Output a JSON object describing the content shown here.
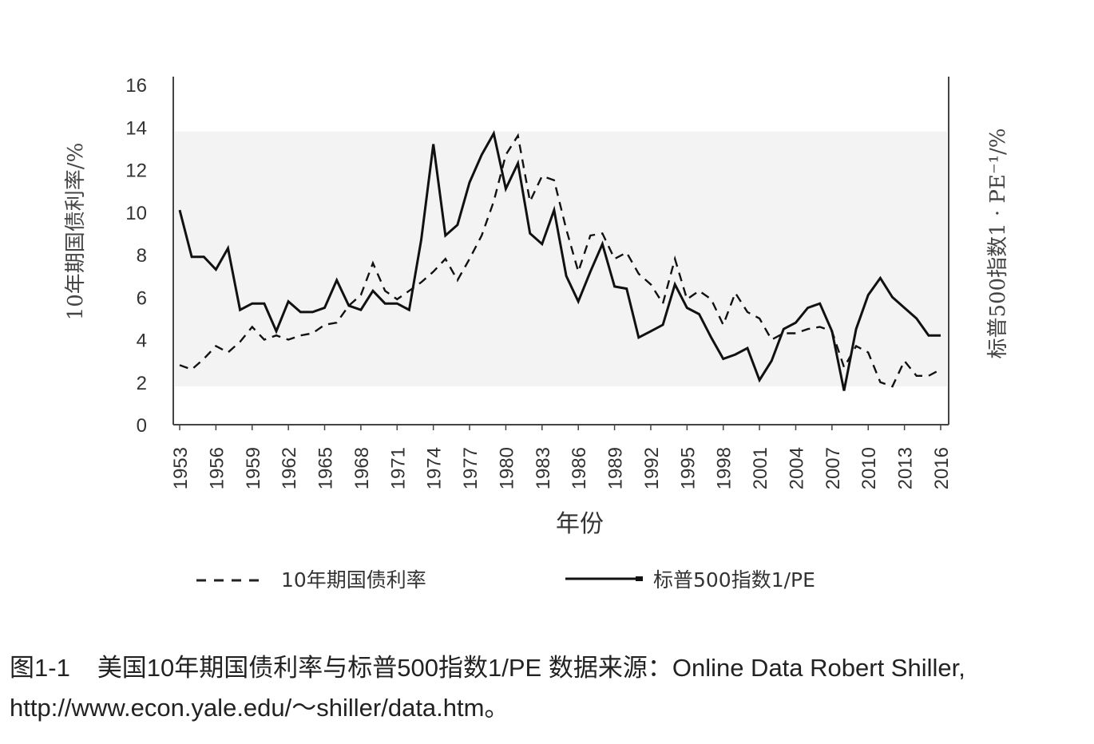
{
  "caption": {
    "label": "图1-1",
    "text": "美国10年期国债利率与标普500指数1/PE 数据来源：Online Data Robert Shiller, http://www.econ.yale.edu/～shiller/data.htm。"
  },
  "chart_data": {
    "type": "line",
    "xlabel": "年份",
    "ylabel": "10年期国债利率/%",
    "y2label": "标普500指数1 · PE⁻¹/%",
    "ylim": [
      0,
      16
    ],
    "yticks": [
      0,
      2,
      4,
      6,
      8,
      10,
      12,
      14,
      16
    ],
    "xlim": [
      1953,
      2016
    ],
    "xticks": [
      "1953",
      "1956",
      "1959",
      "1962",
      "1965",
      "1968",
      "1971",
      "1974",
      "1977",
      "1980",
      "1983",
      "1986",
      "1989",
      "1992",
      "1995",
      "1998",
      "2001",
      "2004",
      "2007",
      "2010",
      "2013",
      "2016"
    ],
    "legend_position": "bottom",
    "colors": {
      "line": "#111111",
      "band": "#f3f3f3"
    },
    "x": [
      1953,
      1954,
      1955,
      1956,
      1957,
      1958,
      1959,
      1960,
      1961,
      1962,
      1963,
      1964,
      1965,
      1966,
      1967,
      1968,
      1969,
      1970,
      1971,
      1972,
      1973,
      1974,
      1975,
      1976,
      1977,
      1978,
      1979,
      1980,
      1981,
      1982,
      1983,
      1984,
      1985,
      1986,
      1987,
      1988,
      1989,
      1990,
      1991,
      1992,
      1993,
      1994,
      1995,
      1996,
      1997,
      1998,
      1999,
      2000,
      2001,
      2002,
      2003,
      2004,
      2005,
      2006,
      2007,
      2008,
      2009,
      2010,
      2011,
      2012,
      2013,
      2014,
      2015,
      2016
    ],
    "series": [
      {
        "name": "10年期国债利率",
        "style": "dashed",
        "values": [
          2.8,
          2.6,
          3.1,
          3.7,
          3.4,
          3.9,
          4.6,
          4.0,
          4.2,
          4.0,
          4.2,
          4.3,
          4.7,
          4.8,
          5.6,
          6.1,
          7.6,
          6.3,
          5.9,
          6.3,
          6.7,
          7.2,
          7.8,
          6.8,
          7.8,
          8.9,
          10.5,
          12.7,
          13.6,
          10.5,
          11.7,
          11.5,
          9.2,
          7.2,
          8.9,
          9.0,
          7.8,
          8.1,
          7.1,
          6.6,
          5.7,
          7.8,
          5.9,
          6.3,
          5.9,
          4.7,
          6.2,
          5.3,
          5.0,
          4.0,
          4.3,
          4.3,
          4.5,
          4.6,
          4.4,
          2.7,
          3.7,
          3.4,
          2.0,
          1.8,
          3.0,
          2.3,
          2.3,
          2.6
        ]
      },
      {
        "name": "标普500指数1/PE",
        "style": "solid",
        "values": [
          10.1,
          7.9,
          7.9,
          7.3,
          8.3,
          5.4,
          5.7,
          5.7,
          4.4,
          5.8,
          5.3,
          5.3,
          5.5,
          6.8,
          5.6,
          5.4,
          6.3,
          5.7,
          5.7,
          5.4,
          8.7,
          13.2,
          8.9,
          9.4,
          11.4,
          12.7,
          13.7,
          11.1,
          12.3,
          9.0,
          8.5,
          10.1,
          7.0,
          5.8,
          7.2,
          8.5,
          6.5,
          6.4,
          4.1,
          4.4,
          4.7,
          6.6,
          5.5,
          5.2,
          4.1,
          3.1,
          3.3,
          3.6,
          2.1,
          3.0,
          4.5,
          4.8,
          5.5,
          5.7,
          4.4,
          1.6,
          4.5,
          6.1,
          6.9,
          6.0,
          5.5,
          5.0,
          4.2,
          4.2
        ]
      }
    ]
  }
}
